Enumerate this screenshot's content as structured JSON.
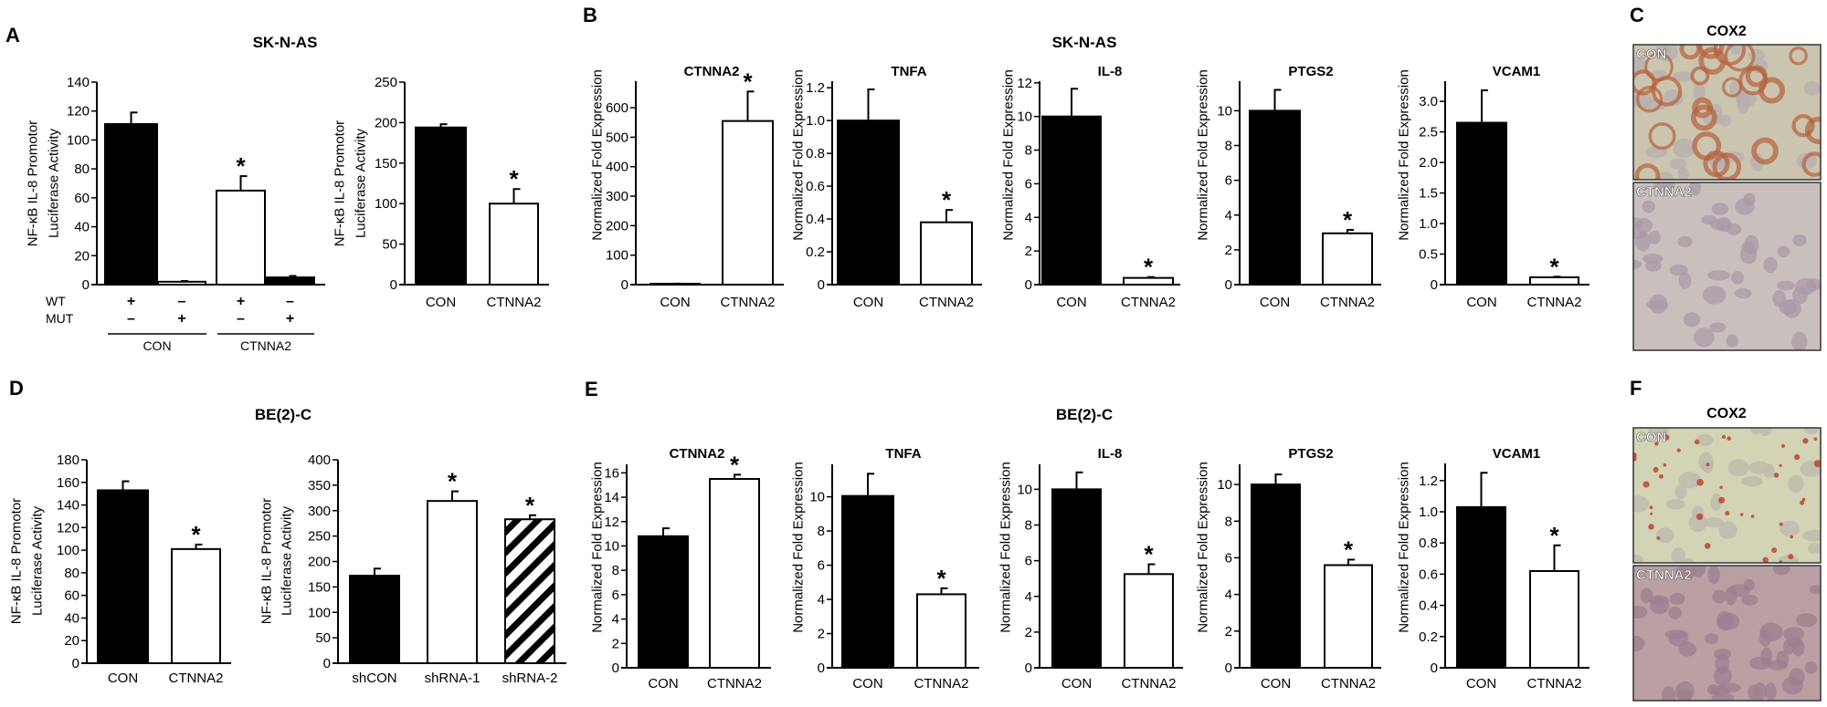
{
  "panels": {
    "A": {
      "letter": "A",
      "cell_line": "SK-N-AS"
    },
    "B": {
      "letter": "B",
      "cell_line": "SK-N-AS"
    },
    "C": {
      "letter": "C",
      "title": "COX2",
      "images": [
        {
          "label": "CON",
          "stain": "#b5603a"
        },
        {
          "label": "CTNNA2",
          "stain": "#b9aeb3"
        }
      ]
    },
    "D": {
      "letter": "D",
      "cell_line": "BE(2)-C"
    },
    "E": {
      "letter": "E",
      "cell_line": "BE(2)-C"
    },
    "F": {
      "letter": "F",
      "title": "COX2",
      "images": [
        {
          "label": "CON",
          "stain": "#c0442c"
        },
        {
          "label": "CTNNA2",
          "stain": "#b08f98"
        }
      ]
    }
  },
  "colors": {
    "bar_control": "#000000",
    "bar_ctnna2": "#ffffff",
    "axis": "#000000"
  },
  "chart_data": [
    {
      "type": "bar",
      "panel": "A",
      "ylabel": [
        "NF-κB IL-8 Promotor",
        "Luciferase Activity"
      ],
      "ylim": [
        0,
        140
      ],
      "yticks": [
        0,
        20,
        40,
        60,
        80,
        100,
        120,
        140
      ],
      "ytick_labels": [
        "0",
        "20",
        "40",
        "60",
        "80",
        "100",
        "120",
        "140"
      ],
      "values": [
        111,
        2,
        65,
        5
      ],
      "errors": [
        8,
        0.5,
        10,
        1
      ],
      "significant": [
        false,
        false,
        true,
        false
      ],
      "fills": [
        "black",
        "white",
        "white",
        "black"
      ],
      "condition_rows": [
        {
          "label": "WT",
          "signs": [
            "+",
            "–",
            "+",
            "–"
          ]
        },
        {
          "label": "MUT",
          "signs": [
            "–",
            "+",
            "–",
            "+"
          ]
        }
      ],
      "groups": [
        "CON",
        "CTNNA2"
      ]
    },
    {
      "type": "bar",
      "panel": "A",
      "ylabel": [
        "NF-κB IL-8 Promotor",
        "Luciferase Activity"
      ],
      "ylim": [
        0,
        250
      ],
      "yticks": [
        0,
        50,
        100,
        150,
        200,
        250
      ],
      "ytick_labels": [
        "0",
        "50",
        "100",
        "150",
        "200",
        "250"
      ],
      "categories": [
        "CON",
        "CTNNA2"
      ],
      "values": [
        194,
        100
      ],
      "errors": [
        4,
        18
      ],
      "significant": [
        false,
        true
      ],
      "fills": [
        "black",
        "white"
      ]
    },
    {
      "type": "bar",
      "panel": "B",
      "title": "CTNNA2",
      "ylabel": [
        "Normalized Fold Expression"
      ],
      "ylim": [
        0,
        690
      ],
      "yticks": [
        0,
        100,
        200,
        300,
        400,
        500,
        600
      ],
      "ytick_labels": [
        "0",
        "100",
        "200",
        "300",
        "400",
        "500",
        "600"
      ],
      "categories": [
        "CON",
        "CTNNA2"
      ],
      "values": [
        3,
        555
      ],
      "errors": [
        0.5,
        100
      ],
      "significant": [
        false,
        true
      ],
      "fills": [
        "black",
        "white"
      ]
    },
    {
      "type": "bar",
      "panel": "B",
      "title": "TNFA",
      "ylabel": [
        "Normalized Fold Expression"
      ],
      "ylim": [
        0,
        1.24
      ],
      "yticks": [
        0,
        0.2,
        0.4,
        0.6,
        0.8,
        1.0,
        1.2
      ],
      "ytick_labels": [
        "0",
        "0.2",
        "0.4",
        "0.6",
        "0.8",
        "1.0",
        "1.2"
      ],
      "categories": [
        "CON",
        "CTNNA2"
      ],
      "values": [
        1.0,
        0.38
      ],
      "errors": [
        0.19,
        0.075
      ],
      "significant": [
        false,
        true
      ],
      "fills": [
        "black",
        "white"
      ]
    },
    {
      "type": "bar",
      "panel": "B",
      "title": "IL-8",
      "ylabel": [
        "Normalized Fold Expression"
      ],
      "ylim": [
        0,
        12.1
      ],
      "yticks": [
        0,
        2,
        4,
        6,
        8,
        10,
        12
      ],
      "ytick_labels": [
        "0",
        "2",
        "4",
        "6",
        "8",
        "10",
        "12"
      ],
      "categories": [
        "CON",
        "CTNNA2"
      ],
      "values": [
        10,
        0.4
      ],
      "errors": [
        1.65,
        0.05
      ],
      "significant": [
        false,
        true
      ],
      "fills": [
        "black",
        "white"
      ]
    },
    {
      "type": "bar",
      "panel": "B",
      "title": "PTGS2",
      "ylabel": [
        "Normalized Fold Expression"
      ],
      "ylim": [
        0,
        11.7
      ],
      "yticks": [
        0,
        2,
        4,
        6,
        8,
        10
      ],
      "ytick_labels": [
        "0",
        "2",
        "4",
        "6",
        "8",
        "10"
      ],
      "categories": [
        "CON",
        "CTNNA2"
      ],
      "values": [
        10,
        2.95
      ],
      "errors": [
        1.2,
        0.2
      ],
      "significant": [
        false,
        true
      ],
      "fills": [
        "black",
        "white"
      ]
    },
    {
      "type": "bar",
      "panel": "B",
      "title": "VCAM1",
      "ylabel": [
        "Normalized Fold Expression"
      ],
      "ylim": [
        0,
        3.33
      ],
      "yticks": [
        0,
        0.5,
        1.0,
        1.5,
        2.0,
        2.5,
        3.0
      ],
      "ytick_labels": [
        "0",
        "0.5",
        "1.0",
        "1.5",
        "2.0",
        "2.5",
        "3.0"
      ],
      "categories": [
        "CON",
        "CTNNA2"
      ],
      "values": [
        2.65,
        0.12
      ],
      "errors": [
        0.53,
        0.01
      ],
      "significant": [
        false,
        true
      ],
      "fills": [
        "black",
        "white"
      ]
    },
    {
      "type": "bar",
      "panel": "D",
      "ylabel": [
        "NF-κB IL-8 Promotor",
        "Luciferase Activity"
      ],
      "ylim": [
        0,
        180
      ],
      "yticks": [
        0,
        20,
        40,
        60,
        80,
        100,
        120,
        140,
        160,
        180
      ],
      "ytick_labels": [
        "0",
        "20",
        "40",
        "60",
        "80",
        "100",
        "120",
        "140",
        "160",
        "180"
      ],
      "categories": [
        "CON",
        "CTNNA2"
      ],
      "values": [
        153,
        101
      ],
      "errors": [
        8,
        4
      ],
      "significant": [
        false,
        true
      ],
      "fills": [
        "black",
        "white"
      ]
    },
    {
      "type": "bar",
      "panel": "D",
      "ylabel": [
        "NF-κB IL-8 Promotor",
        "Luciferase Activity"
      ],
      "ylim": [
        0,
        400
      ],
      "yticks": [
        0,
        50,
        100,
        150,
        200,
        250,
        300,
        350,
        400
      ],
      "ytick_labels": [
        "0",
        "50",
        "100",
        "150",
        "200",
        "250",
        "300",
        "350",
        "400"
      ],
      "categories": [
        "shCON",
        "shRNA-1",
        "shRNA-2"
      ],
      "values": [
        172,
        319,
        283
      ],
      "errors": [
        14,
        19,
        8
      ],
      "significant": [
        false,
        true,
        true
      ],
      "fills": [
        "black",
        "white",
        "hatched"
      ]
    },
    {
      "type": "bar",
      "panel": "E",
      "title": "CTNNA2",
      "ylabel": [
        "Normalized Fold Expression"
      ],
      "ylim": [
        0,
        16.7
      ],
      "yticks": [
        0,
        2,
        4,
        6,
        8,
        10,
        12,
        14,
        16
      ],
      "ytick_labels": [
        "0",
        "2",
        "4",
        "6",
        "8",
        "10",
        "12",
        "14",
        "16"
      ],
      "categories": [
        "CON",
        "CTNNA2"
      ],
      "values": [
        10.8,
        15.5
      ],
      "errors": [
        0.65,
        0.35
      ],
      "significant": [
        false,
        true
      ],
      "fills": [
        "black",
        "white"
      ]
    },
    {
      "type": "bar",
      "panel": "E",
      "title": "TNFA",
      "ylabel": [
        "Normalized Fold Expression"
      ],
      "ylim": [
        0,
        11.9
      ],
      "yticks": [
        0,
        2,
        4,
        6,
        8,
        10
      ],
      "ytick_labels": [
        "0",
        "2",
        "4",
        "6",
        "8",
        "10"
      ],
      "categories": [
        "CON",
        "CTNNA2"
      ],
      "values": [
        10.05,
        4.3
      ],
      "errors": [
        1.3,
        0.35
      ],
      "significant": [
        false,
        true
      ],
      "fills": [
        "black",
        "white"
      ]
    },
    {
      "type": "bar",
      "panel": "E",
      "title": "IL-8",
      "ylabel": [
        "Normalized Fold Expression"
      ],
      "ylim": [
        0,
        11.4
      ],
      "yticks": [
        0,
        2,
        4,
        6,
        8,
        10
      ],
      "ytick_labels": [
        "0",
        "2",
        "4",
        "6",
        "8",
        "10"
      ],
      "categories": [
        "CON",
        "CTNNA2"
      ],
      "values": [
        10,
        5.25
      ],
      "errors": [
        0.95,
        0.55
      ],
      "significant": [
        false,
        true
      ],
      "fills": [
        "black",
        "white"
      ]
    },
    {
      "type": "bar",
      "panel": "E",
      "title": "PTGS2",
      "ylabel": [
        "Normalized Fold Expression"
      ],
      "ylim": [
        0,
        11.1
      ],
      "yticks": [
        0,
        2,
        4,
        6,
        8,
        10
      ],
      "ytick_labels": [
        "0",
        "2",
        "4",
        "6",
        "8",
        "10"
      ],
      "categories": [
        "CON",
        "CTNNA2"
      ],
      "values": [
        10,
        5.6
      ],
      "errors": [
        0.55,
        0.3
      ],
      "significant": [
        false,
        true
      ],
      "fills": [
        "black",
        "white"
      ]
    },
    {
      "type": "bar",
      "panel": "E",
      "title": "VCAM1",
      "ylabel": [
        "Normalized Fold Expression"
      ],
      "ylim": [
        0,
        1.31
      ],
      "yticks": [
        0,
        0.2,
        0.4,
        0.6,
        0.8,
        1.0,
        1.2
      ],
      "ytick_labels": [
        "0",
        "0.2",
        "0.4",
        "0.6",
        "0.8",
        "1.0",
        "1.2"
      ],
      "categories": [
        "CON",
        "CTNNA2"
      ],
      "values": [
        1.03,
        0.62
      ],
      "errors": [
        0.22,
        0.165
      ],
      "significant": [
        false,
        true
      ],
      "fills": [
        "black",
        "white"
      ]
    }
  ],
  "significance_marker": "*"
}
